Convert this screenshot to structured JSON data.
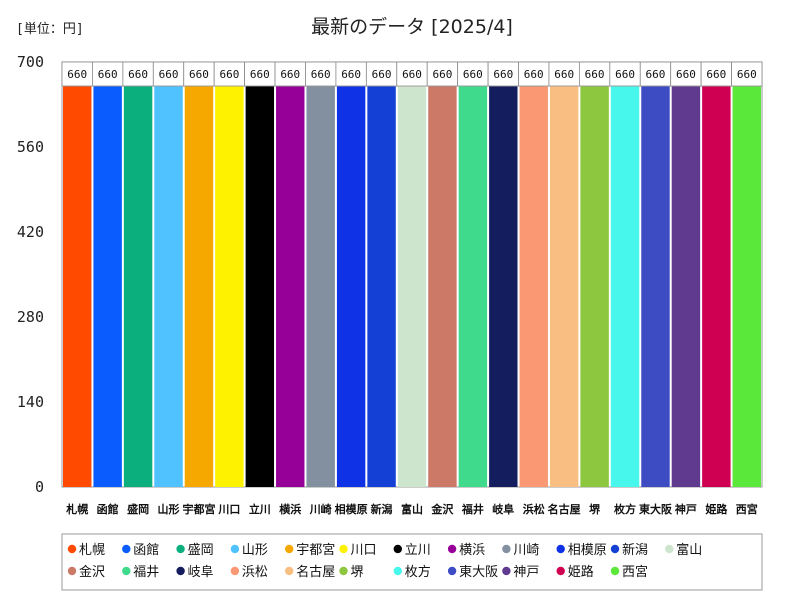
{
  "unit_label": "[単位：円]",
  "chart_data": {
    "type": "bar",
    "title": "最新のデータ [2025/4]",
    "ylim": [
      0,
      700
    ],
    "yticks": [
      0,
      140,
      280,
      420,
      560,
      700
    ],
    "grid": false,
    "legend_position": "bottom",
    "categories": [
      "札幌",
      "函館",
      "盛岡",
      "山形",
      "宇都宮",
      "川口",
      "立川",
      "横浜",
      "川崎",
      "相模原",
      "新潟",
      "富山",
      "金沢",
      "福井",
      "岐阜",
      "浜松",
      "名古屋",
      "堺",
      "枚方",
      "東大阪",
      "神戸",
      "姫路",
      "西宮"
    ],
    "values": [
      660,
      660,
      660,
      660,
      660,
      660,
      660,
      660,
      660,
      660,
      660,
      660,
      660,
      660,
      660,
      660,
      660,
      660,
      660,
      660,
      660,
      660,
      660
    ],
    "data_labels": [
      "660",
      "660",
      "660",
      "660",
      "660",
      "660",
      "660",
      "660",
      "660",
      "660",
      "660",
      "660",
      "660",
      "660",
      "660",
      "660",
      "660",
      "660",
      "660",
      "660",
      "660",
      "660",
      "660"
    ],
    "colors": [
      "#FF4A00",
      "#0B5CFF",
      "#0BAF7E",
      "#4FC2FF",
      "#F7A800",
      "#FFF200",
      "#000000",
      "#970098",
      "#8290A0",
      "#0F32E6",
      "#1440D6",
      "#CCE5CC",
      "#CD7968",
      "#3FDA8C",
      "#141E5E",
      "#F99873",
      "#F9BF82",
      "#8DC63F",
      "#48F7EC",
      "#3E4CC4",
      "#5F3A8E",
      "#CF0052",
      "#5AE83A"
    ],
    "tick_labels_shown": [
      "札幌",
      "函館",
      "盛岡",
      "山形",
      "宇都宮",
      "川口",
      "立川",
      "横浜",
      "川崎",
      "相模原",
      "新潟",
      "富山",
      "金沢",
      "福井",
      "岐阜",
      "浜松",
      "名古屋",
      "堺",
      "枚方",
      "東大阪",
      "神戸",
      "姫路",
      "西宮"
    ]
  }
}
